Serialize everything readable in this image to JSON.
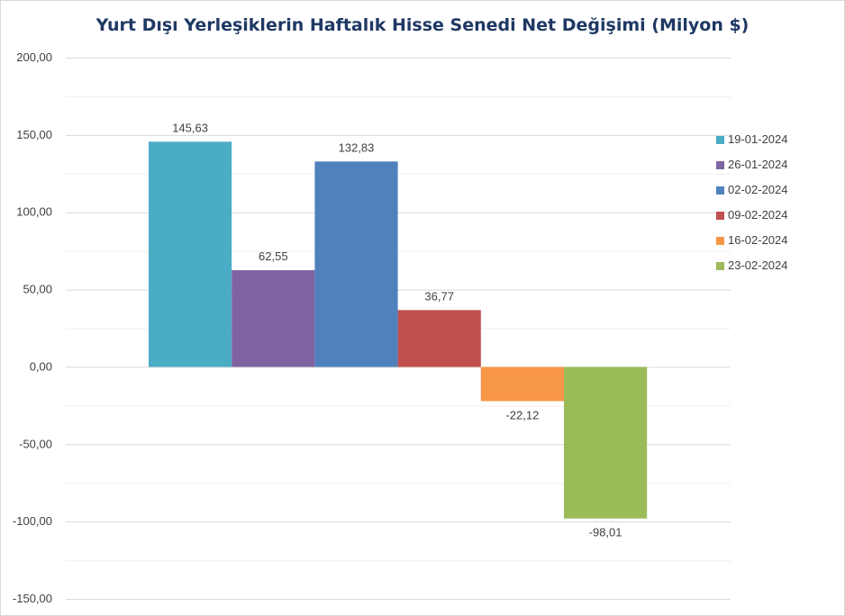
{
  "chart_data": {
    "type": "bar",
    "title": "Yurt Dışı Yerleşiklerin Haftalık Hisse Senedi Net Değişimi (Milyon $)",
    "xlabel": "",
    "ylabel": "",
    "ylim": [
      -150,
      200
    ],
    "y_ticks": [
      200,
      150,
      100,
      50,
      0,
      -50,
      -100,
      -150
    ],
    "y_tick_labels": [
      "200,00",
      "150,00",
      "100,00",
      "50,00",
      "0,00",
      "-50,00",
      "-100,00",
      "-150,00"
    ],
    "grid": "horizontal",
    "legend_position": "right",
    "series": [
      {
        "name": "19-01-2024",
        "values": [
          145.63
        ],
        "label": "145,63",
        "color": "#4bacc6"
      },
      {
        "name": "26-01-2024",
        "values": [
          62.55
        ],
        "label": "62,55",
        "color": "#8064a2"
      },
      {
        "name": "02-02-2024",
        "values": [
          132.83
        ],
        "label": "132,83",
        "color": "#4f81bd"
      },
      {
        "name": "09-02-2024",
        "values": [
          36.77
        ],
        "label": "36,77",
        "color": "#c0504d"
      },
      {
        "name": "16-02-2024",
        "values": [
          -22.12
        ],
        "label": "-22,12",
        "color": "#f79646"
      },
      {
        "name": "23-02-2024",
        "values": [
          -98.01
        ],
        "label": "-98,01",
        "color": "#9bbb59"
      }
    ]
  }
}
